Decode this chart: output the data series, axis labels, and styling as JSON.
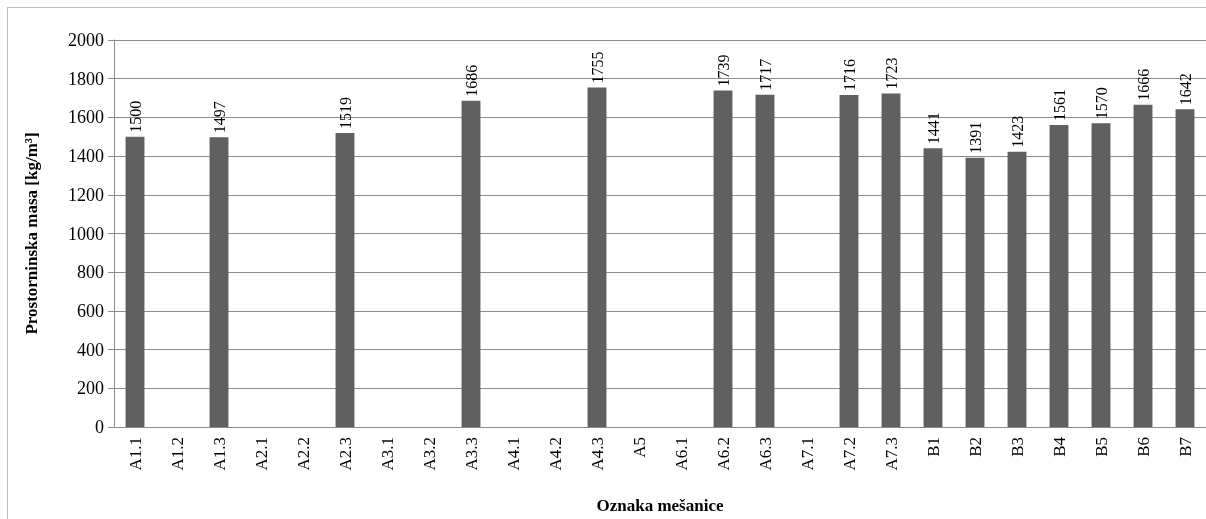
{
  "chart_data": {
    "type": "bar",
    "xlabel": "Oznaka mešanice",
    "ylabel": "Prostorninska masa [kg/m³]",
    "categories": [
      "A1.1",
      "A1.2",
      "A1.3",
      "A2.1",
      "A2.2",
      "A2.3",
      "A3.1",
      "A3.2",
      "A3.3",
      "A4.1",
      "A4.2",
      "A4.3",
      "A5",
      "A6.1",
      "A6.2",
      "A6.3",
      "A7.1",
      "A7.2",
      "A7.3",
      "B1",
      "B2",
      "B3",
      "B4",
      "B5",
      "B6",
      "B7"
    ],
    "values": [
      1500,
      null,
      1497,
      null,
      null,
      1519,
      null,
      null,
      1686,
      null,
      null,
      1755,
      null,
      null,
      1739,
      1717,
      null,
      1716,
      1723,
      1441,
      1391,
      1423,
      1561,
      1570,
      1666,
      1642
    ],
    "color": "#606060",
    "ylim": [
      0,
      2000
    ],
    "yticks": [
      0,
      200,
      400,
      600,
      800,
      1000,
      1200,
      1400,
      1600,
      1800,
      2000
    ],
    "grid": "y",
    "data_labels": true
  }
}
